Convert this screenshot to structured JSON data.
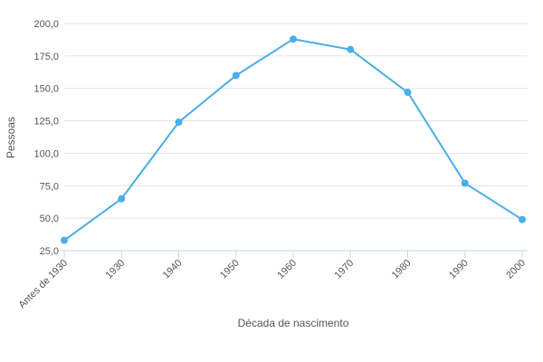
{
  "chart_data": {
    "type": "line",
    "categories": [
      "Antes de 1930",
      "1930",
      "1940",
      "1950",
      "1960",
      "1970",
      "1980",
      "1990",
      "2000"
    ],
    "series": [
      {
        "values": [
          33,
          65,
          124,
          160,
          188,
          180,
          147,
          77,
          49
        ],
        "color": "#4aaee8"
      }
    ],
    "xlabel": "Década de nascimento",
    "ylabel": "Pessoas",
    "ylim": [
      25,
      200
    ],
    "yticks": [
      "25,0",
      "50,0",
      "75,0",
      "100,0",
      "125,0",
      "150,0",
      "175,0",
      "200,0"
    ],
    "ytick_values": [
      25,
      50,
      75,
      100,
      125,
      150,
      175,
      200
    ],
    "grid": true,
    "legend": "none"
  }
}
